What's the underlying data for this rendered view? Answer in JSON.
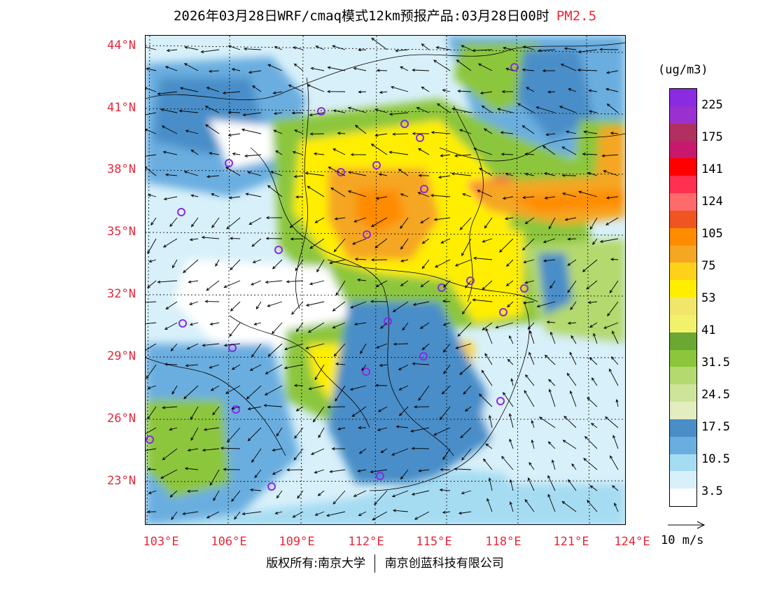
{
  "title": {
    "main": "2026年03月28日WRF/cmaq模式12km预报产品:03月28日00时",
    "pollutant": "PM2.5"
  },
  "map": {
    "lat_labels": [
      "44°N",
      "41°N",
      "38°N",
      "35°N",
      "32°N",
      "29°N",
      "26°N",
      "23°N"
    ],
    "lon_labels": [
      "103°E",
      "106°E",
      "109°E",
      "112°E",
      "115°E",
      "118°E",
      "121°E",
      "124°E"
    ]
  },
  "legend": {
    "unit": "(ug/m3)",
    "labels": [
      "225",
      "175",
      "141",
      "124",
      "105",
      "75",
      "53",
      "41",
      "31.5",
      "24.5",
      "17.5",
      "10.5",
      "3.5"
    ],
    "colors": [
      "#8a2be2",
      "#9b30d0",
      "#b03060",
      "#c8186e",
      "#ff0000",
      "#ff3050",
      "#ff6a6a",
      "#ee5522",
      "#ff8c00",
      "#f5a623",
      "#ffd21a",
      "#ffee00",
      "#f2e66a",
      "#f2f26a",
      "#6aa832",
      "#8cc63c",
      "#b4d96e",
      "#cde49a",
      "#e4edc0",
      "#4a8ec8",
      "#6aaee0",
      "#a6dcf2",
      "#d8f0fa",
      "#ffffff"
    ]
  },
  "wind_key": {
    "label": "10 m/s"
  },
  "footer": {
    "copyright": "版权所有:南京大学",
    "company": "南京创蓝科技有限公司"
  },
  "cities": [
    "city-a",
    "city-b",
    "city-c",
    "city-d",
    "city-e",
    "city-f",
    "city-g",
    "city-h",
    "city-i",
    "city-j",
    "city-k",
    "city-l",
    "city-m",
    "city-n",
    "city-o",
    "city-p",
    "city-q",
    "city-r",
    "city-s",
    "city-t",
    "city-u",
    "city-v"
  ]
}
